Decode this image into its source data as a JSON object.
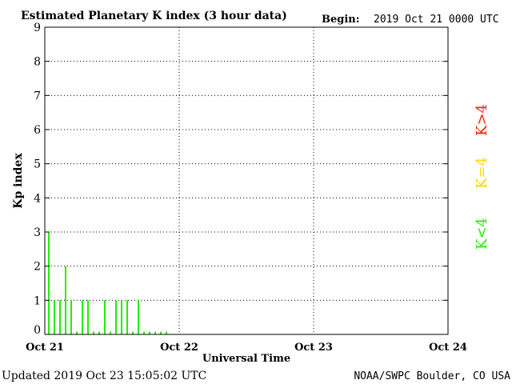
{
  "header": {
    "title": "Estimated Planetary K index (3 hour data)",
    "begin_label": "Begin:",
    "begin_value": "2019 Oct 21 0000 UTC"
  },
  "footer": {
    "updated": "Updated 2019 Oct 23 15:05:02 UTC",
    "source": "NOAA/SWPC Boulder, CO USA"
  },
  "legend": {
    "items": [
      {
        "label": "K>4",
        "color": "#ff2200"
      },
      {
        "label": "K=4",
        "color": "#ffd700"
      },
      {
        "label": "K<4",
        "color": "#22ee00"
      }
    ]
  },
  "chart_data": {
    "type": "bar",
    "title": "Estimated Planetary K index (3 hour data)",
    "xlabel": "Universal Time",
    "ylabel": "Kp index",
    "ylim": [
      0,
      9
    ],
    "yticks": [
      "0",
      "1",
      "2",
      "3",
      "4",
      "5",
      "6",
      "7",
      "8",
      "9"
    ],
    "xticks": [
      "Oct 21",
      "Oct 22",
      "Oct 23",
      "Oct 24"
    ],
    "interval_hours": 3,
    "values": [
      3,
      1,
      1,
      2,
      1,
      0,
      1,
      1,
      0,
      0,
      1,
      0,
      1,
      1,
      1,
      0,
      1,
      0,
      0,
      0,
      0,
      0
    ],
    "bar_color": "#22ee00",
    "grid": "dotted"
  }
}
